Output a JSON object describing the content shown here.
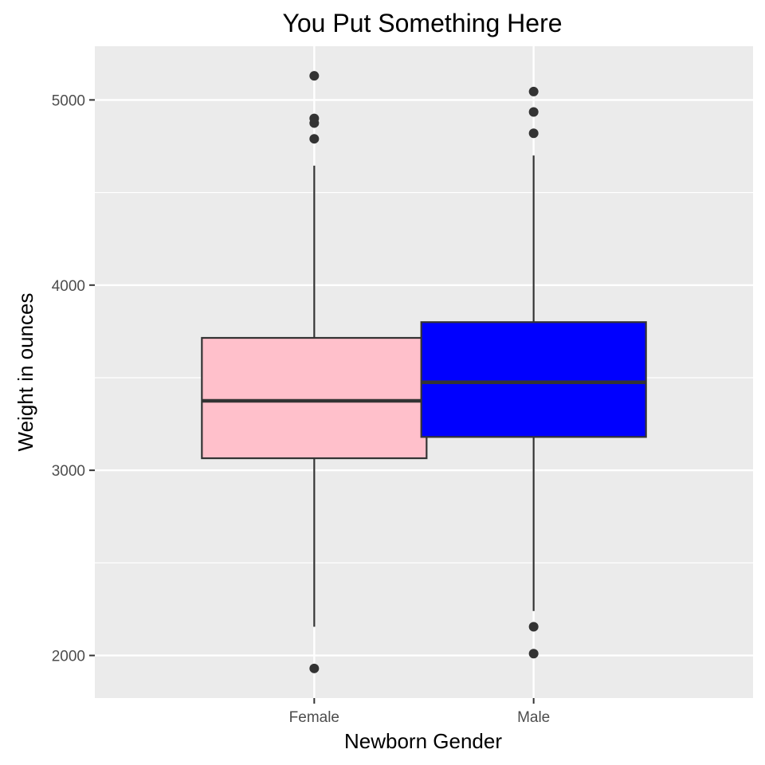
{
  "chart_data": {
    "type": "boxplot",
    "title": "You Put Something Here",
    "xlabel": "Newborn Gender",
    "ylabel": "Weight in ounces",
    "categories": [
      "Female",
      "Male"
    ],
    "ylim": [
      1770,
      5290
    ],
    "yticks": [
      2000,
      3000,
      4000,
      5000
    ],
    "grid": true,
    "background": "#ebebeb",
    "gridline_color": "#ffffff",
    "outline_color": "#333333",
    "boxes": [
      {
        "category": "Female",
        "color": "#ffc0cb",
        "whisker_low": 2155,
        "q1": 3065,
        "median": 3375,
        "q3": 3715,
        "whisker_high": 4645,
        "outliers": [
          1930,
          4790,
          4875,
          4900,
          5130
        ]
      },
      {
        "category": "Male",
        "color": "#0000ff",
        "whisker_low": 2240,
        "q1": 3180,
        "median": 3475,
        "q3": 3800,
        "whisker_high": 4700,
        "outliers": [
          2010,
          2155,
          4820,
          4935,
          5045
        ]
      }
    ]
  }
}
